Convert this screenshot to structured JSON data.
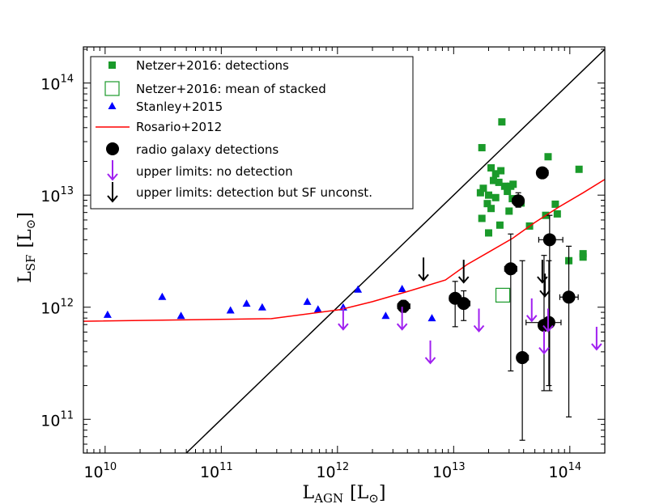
{
  "chart_data": {
    "type": "scatter",
    "title": "",
    "xlabel": {
      "main": "L",
      "sub": "AGN",
      "unit": "[L",
      "unit_sub": "⊙",
      "unit_close": "]"
    },
    "ylabel": {
      "main": "L",
      "sub": "SF",
      "unit": "[L",
      "unit_sub": "⊙",
      "unit_close": "]"
    },
    "xscale": "log",
    "yscale": "log",
    "xlim": [
      6500000000.0,
      200000000000000.0
    ],
    "ylim": [
      50000000000.0,
      210000000000000.0
    ],
    "x_ticks": [
      {
        "value": 10000000000.0,
        "base": "10",
        "exp": "10"
      },
      {
        "value": 100000000000.0,
        "base": "10",
        "exp": "11"
      },
      {
        "value": 1000000000000.0,
        "base": "10",
        "exp": "12"
      },
      {
        "value": 10000000000000.0,
        "base": "10",
        "exp": "13"
      },
      {
        "value": 100000000000000.0,
        "base": "10",
        "exp": "14"
      }
    ],
    "y_ticks": [
      {
        "value": 100000000000.0,
        "base": "10",
        "exp": "11"
      },
      {
        "value": 1000000000000.0,
        "base": "10",
        "exp": "12"
      },
      {
        "value": 10000000000000.0,
        "base": "10",
        "exp": "13"
      },
      {
        "value": 100000000000000.0,
        "base": "10",
        "exp": "14"
      }
    ],
    "one_to_one_line": {
      "color": "#000000",
      "points": [
        [
          50000000000.0,
          50000000000.0
        ],
        [
          200000000000000.0,
          200000000000000.0
        ]
      ]
    },
    "legend": {
      "position": "top-left",
      "entries": [
        {
          "label": "Netzer+2016: detections",
          "marker": "filled-square",
          "color": "#1a9a2a"
        },
        {
          "label": "Netzer+2016: mean of stacked",
          "marker": "open-square",
          "color": "#1a9a2a"
        },
        {
          "label": "Stanley+2015",
          "marker": "triangle",
          "color": "#0000ff"
        },
        {
          "label": "Rosario+2012",
          "marker": "line",
          "color": "#ff0000"
        },
        {
          "label": "radio galaxy detections",
          "marker": "circle",
          "color": "#000000"
        },
        {
          "label": "upper limits: no detection",
          "marker": "arrow-down",
          "color": "#a020f0"
        },
        {
          "label": "upper limits: detection but SF unconst.",
          "marker": "arrow-down",
          "color": "#000000"
        }
      ]
    },
    "series": [
      {
        "name": "Netzer+2016: detections",
        "kind": "filled-square",
        "color": "#1a9a2a",
        "points": [
          [
            26000000000000.0,
            45000000000000.0
          ],
          [
            17500000000000.0,
            26500000000000.0
          ],
          [
            65000000000000.0,
            22000000000000.0
          ],
          [
            120000000000000.0,
            17000000000000.0
          ],
          [
            21000000000000.0,
            17500000000000.0
          ],
          [
            23000000000000.0,
            15500000000000.0
          ],
          [
            25500000000000.0,
            16500000000000.0
          ],
          [
            22000000000000.0,
            13500000000000.0
          ],
          [
            24500000000000.0,
            13000000000000.0
          ],
          [
            27500000000000.0,
            12000000000000.0
          ],
          [
            31000000000000.0,
            12000000000000.0
          ],
          [
            32500000000000.0,
            12500000000000.0
          ],
          [
            18000000000000.0,
            11500000000000.0
          ],
          [
            29000000000000.0,
            10800000000000.0
          ],
          [
            17000000000000.0,
            10500000000000.0
          ],
          [
            20000000000000.0,
            10000000000000.0
          ],
          [
            23000000000000.0,
            9500000000000.0
          ],
          [
            32000000000000.0,
            9300000000000.0
          ],
          [
            19500000000000.0,
            8400000000000.0
          ],
          [
            38000000000000.0,
            8500000000000.0
          ],
          [
            21000000000000.0,
            7600000000000.0
          ],
          [
            30000000000000.0,
            7200000000000.0
          ],
          [
            75000000000000.0,
            8300000000000.0
          ],
          [
            17500000000000.0,
            6200000000000.0
          ],
          [
            78000000000000.0,
            6800000000000.0
          ],
          [
            62000000000000.0,
            6600000000000.0
          ],
          [
            25000000000000.0,
            5400000000000.0
          ],
          [
            45000000000000.0,
            5300000000000.0
          ],
          [
            20000000000000.0,
            4600000000000.0
          ],
          [
            130000000000000.0,
            3000000000000.0
          ],
          [
            130000000000000.0,
            2800000000000.0
          ],
          [
            98000000000000.0,
            2600000000000.0
          ]
        ]
      },
      {
        "name": "Netzer+2016: mean of stacked",
        "kind": "open-square",
        "color": "#1a9a2a",
        "points": [
          [
            26500000000000.0,
            1280000000000.0
          ]
        ]
      },
      {
        "name": "Stanley+2015",
        "kind": "triangle",
        "color": "#0000ff",
        "points": [
          [
            10500000000.0,
            860000000000.0
          ],
          [
            31000000000.0,
            1240000000000.0
          ],
          [
            45000000000.0,
            840000000000.0
          ],
          [
            120000000000.0,
            940000000000.0
          ],
          [
            165000000000.0,
            1080000000000.0
          ],
          [
            225000000000.0,
            1000000000000.0
          ],
          [
            550000000000.0,
            1120000000000.0
          ],
          [
            680000000000.0,
            960000000000.0
          ],
          [
            1120000000000.0,
            1000000000000.0
          ],
          [
            1500000000000.0,
            1440000000000.0
          ],
          [
            2600000000000.0,
            840000000000.0
          ],
          [
            3600000000000.0,
            1460000000000.0
          ],
          [
            6500000000000.0,
            800000000000.0
          ]
        ]
      },
      {
        "name": "Rosario+2012",
        "kind": "line",
        "color": "#ff0000",
        "points": [
          [
            6500000000.0,
            750000000000.0
          ],
          [
            270000000000.0,
            790000000000.0
          ],
          [
            1050000000000.0,
            950000000000.0
          ],
          [
            2000000000000.0,
            1120000000000.0
          ],
          [
            4000000000000.0,
            1380000000000.0
          ],
          [
            8500000000000.0,
            1750000000000.0
          ],
          [
            13000000000000.0,
            2400000000000.0
          ],
          [
            20000000000000.0,
            3100000000000.0
          ],
          [
            32000000000000.0,
            4100000000000.0
          ],
          [
            50000000000000.0,
            5700000000000.0
          ],
          [
            80000000000000.0,
            7800000000000.0
          ],
          [
            130000000000000.0,
            10500000000000.0
          ],
          [
            200000000000000.0,
            13800000000000.0
          ]
        ]
      },
      {
        "name": "radio galaxy detections",
        "kind": "circle",
        "color": "#000000",
        "points": [
          {
            "x": 3700000000000.0,
            "y": 1020000000000.0,
            "xerr": [
              3300000000000.0,
              4200000000000.0
            ],
            "yerr": [
              900000000000.0,
              1150000000000.0
            ]
          },
          {
            "x": 10300000000000.0,
            "y": 1200000000000.0,
            "xerr": [
              9200000000000.0,
              11600000000000.0
            ],
            "yerr": [
              670000000000.0,
              1700000000000.0
            ]
          },
          {
            "x": 12200000000000.0,
            "y": 1080000000000.0,
            "xerr": [
              10900000000000.0,
              13800000000000.0
            ],
            "yerr": [
              760000000000.0,
              1400000000000.0
            ]
          },
          {
            "x": 36000000000000.0,
            "y": 8900000000000.0,
            "xerr": [
              32000000000000.0,
              40000000000000.0
            ],
            "yerr": [
              7800000000000.0,
              10500000000000.0
            ]
          },
          {
            "x": 58000000000000.0,
            "y": 15800000000000.0,
            "xerr": [
              52000000000000.0,
              65000000000000.0
            ],
            "yerr": [
              14200000000000.0,
              17200000000000.0
            ]
          },
          {
            "x": 31000000000000.0,
            "y": 2200000000000.0,
            "xerr": [
              27500000000000.0,
              35000000000000.0
            ],
            "yerr": [
              270000000000.0,
              4500000000000.0
            ]
          },
          {
            "x": 39000000000000.0,
            "y": 355000000000.0,
            "xerr": [
              35000000000000.0,
              44000000000000.0
            ],
            "yerr": [
              65000000000.0,
              2600000000000.0
            ]
          },
          {
            "x": 67000000000000.0,
            "y": 4000000000000.0,
            "xerr": [
              54000000000000.0,
              87000000000000.0
            ],
            "yerr": [
              180000000000.0,
              6600000000000.0
            ]
          },
          {
            "x": 60000000000000.0,
            "y": 690000000000.0,
            "xerr": [
              54000000000000.0,
              66000000000000.0
            ],
            "yerr": [
              180000000000.0,
              2900000000000.0
            ]
          },
          {
            "x": 66000000000000.0,
            "y": 730000000000.0,
            "xerr": [
              42000000000000.0,
              84000000000000.0
            ],
            "yerr": [
              200000000000.0,
              2600000000000.0
            ]
          },
          {
            "x": 98000000000000.0,
            "y": 1230000000000.0,
            "xerr": [
              82000000000000.0,
              118000000000000.0
            ],
            "yerr": [
              105000000000.0,
              3500000000000.0
            ]
          }
        ]
      },
      {
        "name": "upper limits: no detection",
        "kind": "arrow-down",
        "color": "#a020f0",
        "points": [
          [
            1120000000000.0,
            800000000000.0
          ],
          [
            3600000000000.0,
            800000000000.0
          ],
          [
            6300000000000.0,
            400000000000.0
          ],
          [
            16500000000000.0,
            770000000000.0
          ],
          [
            47000000000000.0,
            950000000000.0
          ],
          [
            60000000000000.0,
            490000000000.0
          ],
          [
            65000000000000.0,
            770000000000.0
          ],
          [
            170000000000000.0,
            530000000000.0
          ]
        ]
      },
      {
        "name": "upper limits: detection but SF unconst.",
        "kind": "arrow-down",
        "color": "#000000",
        "points": [
          [
            5500000000000.0,
            2200000000000.0
          ],
          [
            12200000000000.0,
            2100000000000.0
          ],
          [
            58000000000000.0,
            2100000000000.0
          ],
          [
            61000000000000.0,
            1580000000000.0
          ]
        ]
      }
    ]
  }
}
